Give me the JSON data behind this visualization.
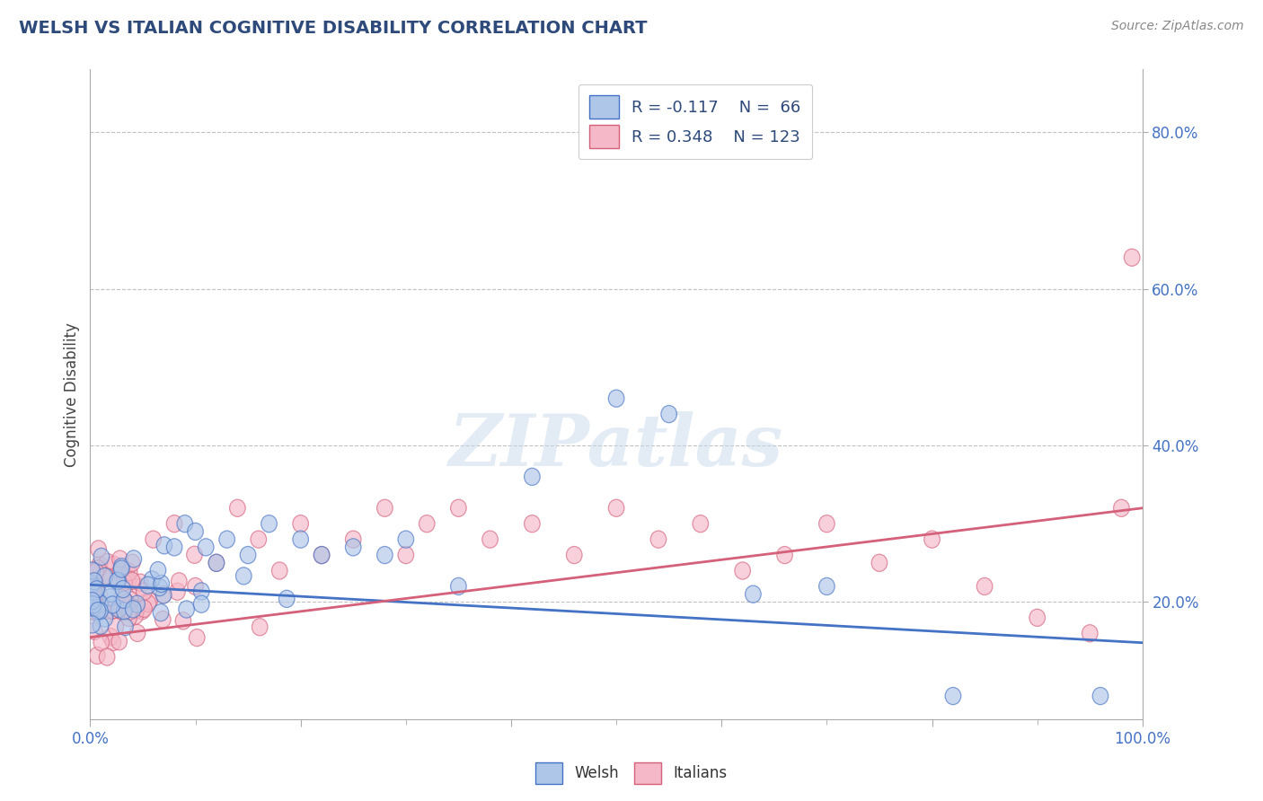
{
  "title": "WELSH VS ITALIAN COGNITIVE DISABILITY CORRELATION CHART",
  "source": "Source: ZipAtlas.com",
  "ylabel": "Cognitive Disability",
  "welsh_R": -0.117,
  "welsh_N": 66,
  "italian_R": 0.348,
  "italian_N": 123,
  "welsh_color": "#aec6e8",
  "italian_color": "#f4b8c8",
  "welsh_line_color": "#4472c4",
  "italian_line_color": "#d4607a",
  "title_color": "#2e4a7a",
  "legend_text_color": "#2e4a7a",
  "watermark": "ZIPatlas",
  "background_color": "#ffffff",
  "grid_color": "#bbbbbb",
  "tick_label_color": "#4472c4",
  "xmin": 0.0,
  "xmax": 1.0,
  "ymin": 0.05,
  "ymax": 0.88,
  "yticks": [
    0.2,
    0.4,
    0.6,
    0.8
  ],
  "ytick_labels": [
    "20.0%",
    "40.0%",
    "60.0%",
    "80.0%"
  ],
  "welsh_trend_x0": 0.0,
  "welsh_trend_y0": 0.222,
  "welsh_trend_x1": 1.0,
  "welsh_trend_y1": 0.148,
  "italian_trend_x0": 0.0,
  "italian_trend_y0": 0.155,
  "italian_trend_x1": 1.0,
  "italian_trend_y1": 0.32
}
